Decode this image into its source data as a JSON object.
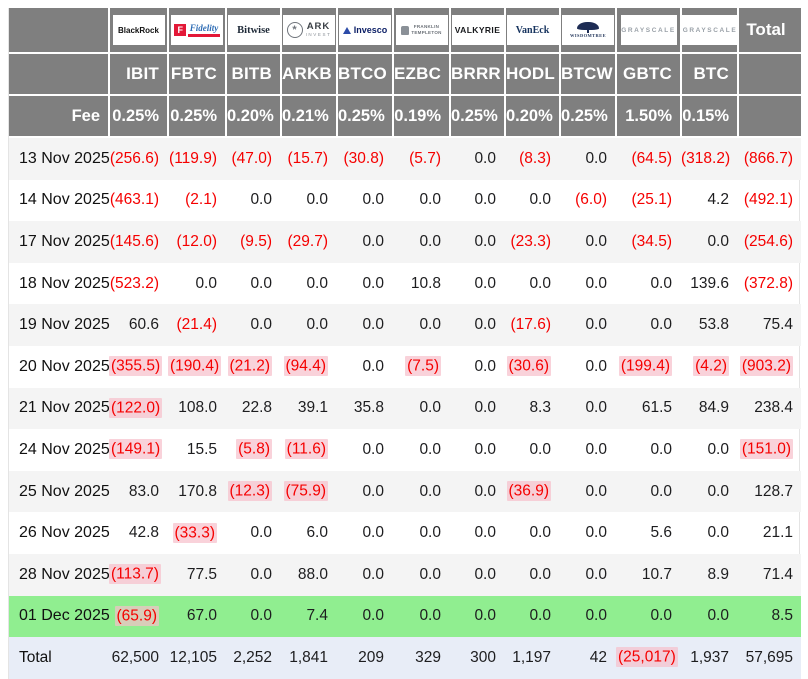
{
  "header": {
    "fee_label": "Fee",
    "total_label": "Total"
  },
  "funds": [
    {
      "provider": "BlackRock",
      "logo": "blackrock",
      "logo_parts": [
        "BlackRock"
      ],
      "ticker": "IBIT",
      "fee": "0.25%"
    },
    {
      "provider": "Fidelity",
      "logo": "fidelity",
      "logo_parts": [
        "F",
        "Fidelity",
        "INVESTMENTS"
      ],
      "ticker": "FBTC",
      "fee": "0.25%"
    },
    {
      "provider": "Bitwise",
      "logo": "bitwise",
      "logo_parts": [
        "Bitwise"
      ],
      "ticker": "BITB",
      "fee": "0.20%"
    },
    {
      "provider": "ARK Invest",
      "logo": "ark",
      "logo_parts": [
        "ARK",
        "INVEST"
      ],
      "ticker": "ARKB",
      "fee": "0.21%"
    },
    {
      "provider": "Invesco",
      "logo": "invesco",
      "logo_parts": [
        "Invesco"
      ],
      "ticker": "BTCO",
      "fee": "0.25%"
    },
    {
      "provider": "Franklin Templeton",
      "logo": "franklin",
      "logo_parts": [
        "FRANKLIN",
        "TEMPLETON"
      ],
      "ticker": "EZBC",
      "fee": "0.19%"
    },
    {
      "provider": "Valkyrie",
      "logo": "valkyrie",
      "logo_parts": [
        "VALKYRIE"
      ],
      "ticker": "BRRR",
      "fee": "0.25%"
    },
    {
      "provider": "VanEck",
      "logo": "vaneck",
      "logo_parts": [
        "VanEck"
      ],
      "ticker": "HODL",
      "fee": "0.20%"
    },
    {
      "provider": "WisdomTree",
      "logo": "wisdomtree",
      "logo_parts": [
        "WISDOMTREE"
      ],
      "ticker": "BTCW",
      "fee": "0.25%"
    },
    {
      "provider": "Grayscale",
      "logo": "grayscale",
      "logo_parts": [
        "GRAYSCALE"
      ],
      "ticker": "GBTC",
      "fee": "1.50%"
    },
    {
      "provider": "Grayscale",
      "logo": "grayscale",
      "logo_parts": [
        "GRAYSCALE"
      ],
      "ticker": "BTC",
      "fee": "0.15%"
    }
  ],
  "rows": [
    {
      "date": "13 Nov 2025",
      "values": [
        "(256.6)",
        "(119.9)",
        "(47.0)",
        "(15.7)",
        "(30.8)",
        "(5.7)",
        "0.0",
        "(8.3)",
        "0.0",
        "(64.5)",
        "(318.2)"
      ],
      "total": "(866.7)",
      "flash": false,
      "latest": false
    },
    {
      "date": "14 Nov 2025",
      "values": [
        "(463.1)",
        "(2.1)",
        "0.0",
        "0.0",
        "0.0",
        "0.0",
        "0.0",
        "0.0",
        "(6.0)",
        "(25.1)",
        "4.2"
      ],
      "total": "(492.1)",
      "flash": false,
      "latest": false
    },
    {
      "date": "17 Nov 2025",
      "values": [
        "(145.6)",
        "(12.0)",
        "(9.5)",
        "(29.7)",
        "0.0",
        "0.0",
        "0.0",
        "(23.3)",
        "0.0",
        "(34.5)",
        "0.0"
      ],
      "total": "(254.6)",
      "flash": false,
      "latest": false
    },
    {
      "date": "18 Nov 2025",
      "values": [
        "(523.2)",
        "0.0",
        "0.0",
        "0.0",
        "0.0",
        "10.8",
        "0.0",
        "0.0",
        "0.0",
        "0.0",
        "139.6"
      ],
      "total": "(372.8)",
      "flash": false,
      "latest": false
    },
    {
      "date": "19 Nov 2025",
      "values": [
        "60.6",
        "(21.4)",
        "0.0",
        "0.0",
        "0.0",
        "0.0",
        "0.0",
        "(17.6)",
        "0.0",
        "0.0",
        "53.8"
      ],
      "total": "75.4",
      "flash": false,
      "latest": false
    },
    {
      "date": "20 Nov 2025",
      "values": [
        "(355.5)",
        "(190.4)",
        "(21.2)",
        "(94.4)",
        "0.0",
        "(7.5)",
        "0.0",
        "(30.6)",
        "0.0",
        "(199.4)",
        "(4.2)"
      ],
      "total": "(903.2)",
      "flash": true,
      "latest": false
    },
    {
      "date": "21 Nov 2025",
      "values": [
        "(122.0)",
        "108.0",
        "22.8",
        "39.1",
        "35.8",
        "0.0",
        "0.0",
        "8.3",
        "0.0",
        "61.5",
        "84.9"
      ],
      "total": "238.4",
      "flash": true,
      "latest": false
    },
    {
      "date": "24 Nov 2025",
      "values": [
        "(149.1)",
        "15.5",
        "(5.8)",
        "(11.6)",
        "0.0",
        "0.0",
        "0.0",
        "0.0",
        "0.0",
        "0.0",
        "0.0"
      ],
      "total": "(151.0)",
      "flash": true,
      "latest": false
    },
    {
      "date": "25 Nov 2025",
      "values": [
        "83.0",
        "170.8",
        "(12.3)",
        "(75.9)",
        "0.0",
        "0.0",
        "0.0",
        "(36.9)",
        "0.0",
        "0.0",
        "0.0"
      ],
      "total": "128.7",
      "flash": true,
      "latest": false
    },
    {
      "date": "26 Nov 2025",
      "values": [
        "42.8",
        "(33.3)",
        "0.0",
        "6.0",
        "0.0",
        "0.0",
        "0.0",
        "0.0",
        "0.0",
        "5.6",
        "0.0"
      ],
      "total": "21.1",
      "flash": true,
      "latest": false
    },
    {
      "date": "28 Nov 2025",
      "values": [
        "(113.7)",
        "77.5",
        "0.0",
        "88.0",
        "0.0",
        "0.0",
        "0.0",
        "0.0",
        "0.0",
        "10.7",
        "8.9"
      ],
      "total": "71.4",
      "flash": true,
      "latest": false
    },
    {
      "date": "01 Dec 2025",
      "values": [
        "(65.9)",
        "67.0",
        "0.0",
        "7.4",
        "0.0",
        "0.0",
        "0.0",
        "0.0",
        "0.0",
        "0.0",
        "0.0"
      ],
      "total": "8.5",
      "flash": true,
      "latest": true
    }
  ],
  "total_row": {
    "label": "Total",
    "values": [
      "62,500",
      "12,105",
      "2,252",
      "1,841",
      "209",
      "329",
      "300",
      "1,197",
      "42",
      "(25,017)",
      "1,937"
    ],
    "total": "57,695",
    "flash": true
  },
  "colors": {
    "header_bg": "#7f7f7f",
    "stripe": "#f4f4f4",
    "negative": "#f50000",
    "flash_highlight": "#f7bfca",
    "green_row": "#90ee90",
    "total_row": "#e8edf7",
    "fidelity_red": "#e31837",
    "invesco_blue": "#2b4ba8"
  }
}
